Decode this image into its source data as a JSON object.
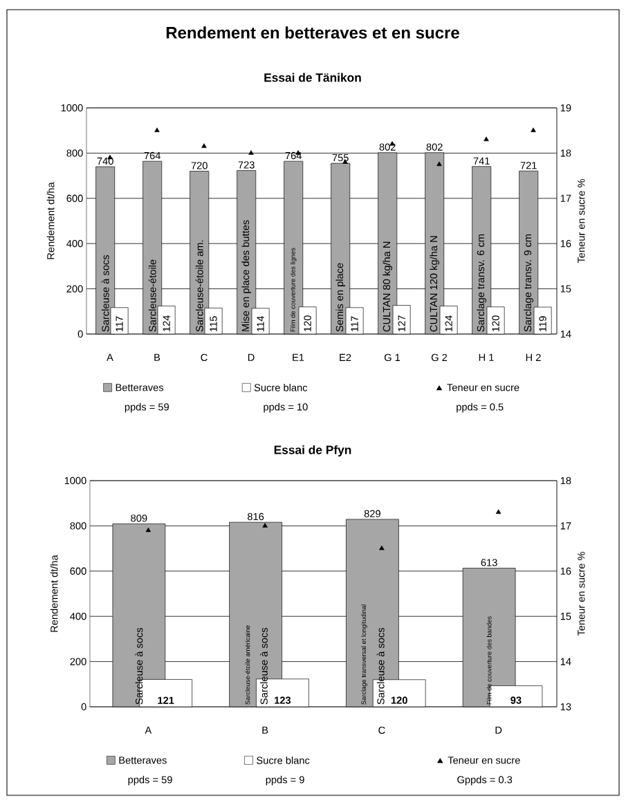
{
  "chart_data": [
    {
      "type": "bar",
      "title": "Rendement en betteraves et en sucre",
      "subtitle": "Essai de Tänikon",
      "ylabel": "Rendement dt/ha",
      "y2label": "Teneur en sucre %",
      "categories": [
        "A",
        "B",
        "C",
        "D",
        "E1",
        "E2",
        "G 1",
        "G 2",
        "H 1",
        "H 2"
      ],
      "series": [
        {
          "name": "Betteraves",
          "color": "#a6a6a6",
          "values": [
            740,
            764,
            720,
            723,
            764,
            755,
            802,
            802,
            741,
            721
          ],
          "value_labels": [
            "740",
            "764",
            "720",
            "723",
            "764",
            "755",
            "802",
            "802",
            "741",
            "721"
          ]
        },
        {
          "name": "Sucre blanc",
          "color": "#ffffff",
          "values": [
            117,
            124,
            115,
            114,
            120,
            117,
            127,
            124,
            120,
            119
          ],
          "value_labels": [
            "117",
            "124",
            "115",
            "114",
            "120",
            "117",
            "127",
            "124",
            "120",
            "119"
          ]
        },
        {
          "name": "Teneur en sucre",
          "type": "scatter",
          "axis": "y2",
          "color": "#000000",
          "values": [
            17.9,
            18.5,
            18.15,
            18.0,
            18.0,
            17.8,
            18.2,
            17.75,
            18.3,
            18.5
          ]
        }
      ],
      "ylim": [
        0,
        1000
      ],
      "yticks": [
        0,
        200,
        400,
        600,
        800,
        1000
      ],
      "y2lim": [
        14,
        19
      ],
      "y2ticks": [
        14,
        15,
        16,
        17,
        18,
        19
      ],
      "grid": "y",
      "legend": "bottom",
      "marker": "triangle",
      "annotations": [
        "Sarcleuse à socs",
        "Sarcleuse-étoile",
        "Sarcleuse-étoile am.",
        "Mise en place des buttes",
        "Film de couverture des lignes",
        "Semis en place",
        "CULTAN 80 kg/ha N",
        "CULTAN 120 kg/ha N",
        "Sarclage transv. 6 cm",
        "Sarclage transv. 9 cm",
        "ppds = 59",
        "ppds = 10",
        "ppds = 0.5"
      ]
    },
    {
      "type": "bar",
      "title": "Essai de Pfyn",
      "ylabel": "Rendement dt/ha",
      "y2label": "Teneur en sucre %",
      "categories": [
        "A",
        "B",
        "C",
        "D"
      ],
      "series": [
        {
          "name": "Betteraves",
          "color": "#a6a6a6",
          "values": [
            809,
            816,
            829,
            613
          ],
          "value_labels": [
            "809",
            "816",
            "829",
            "613"
          ]
        },
        {
          "name": "Sucre blanc",
          "color": "#ffffff",
          "values": [
            121,
            123,
            120,
            93
          ],
          "value_labels": [
            "121",
            "123",
            "120",
            "93"
          ]
        },
        {
          "name": "Teneur en sucre",
          "type": "scatter",
          "axis": "y2",
          "color": "#000000",
          "values": [
            16.9,
            17.0,
            16.5,
            17.3
          ]
        }
      ],
      "ylim": [
        0,
        1000
      ],
      "yticks": [
        0,
        200,
        400,
        600,
        800,
        1000
      ],
      "y2lim": [
        13,
        18
      ],
      "y2ticks": [
        13,
        14,
        15,
        16,
        17,
        18
      ],
      "grid": "y",
      "legend": "bottom",
      "marker": "triangle",
      "annotations": [
        "Sarcleuse à socs",
        "Sarcleuse-étoile américaine",
        "Sarcleuse à socs",
        "Sarclage transversal et longitudinal",
        "Sarcleuse à socs",
        "Film de couverture des bandes",
        "ppds = 59",
        "ppds = 9",
        "Gppds = 0.3"
      ]
    }
  ]
}
